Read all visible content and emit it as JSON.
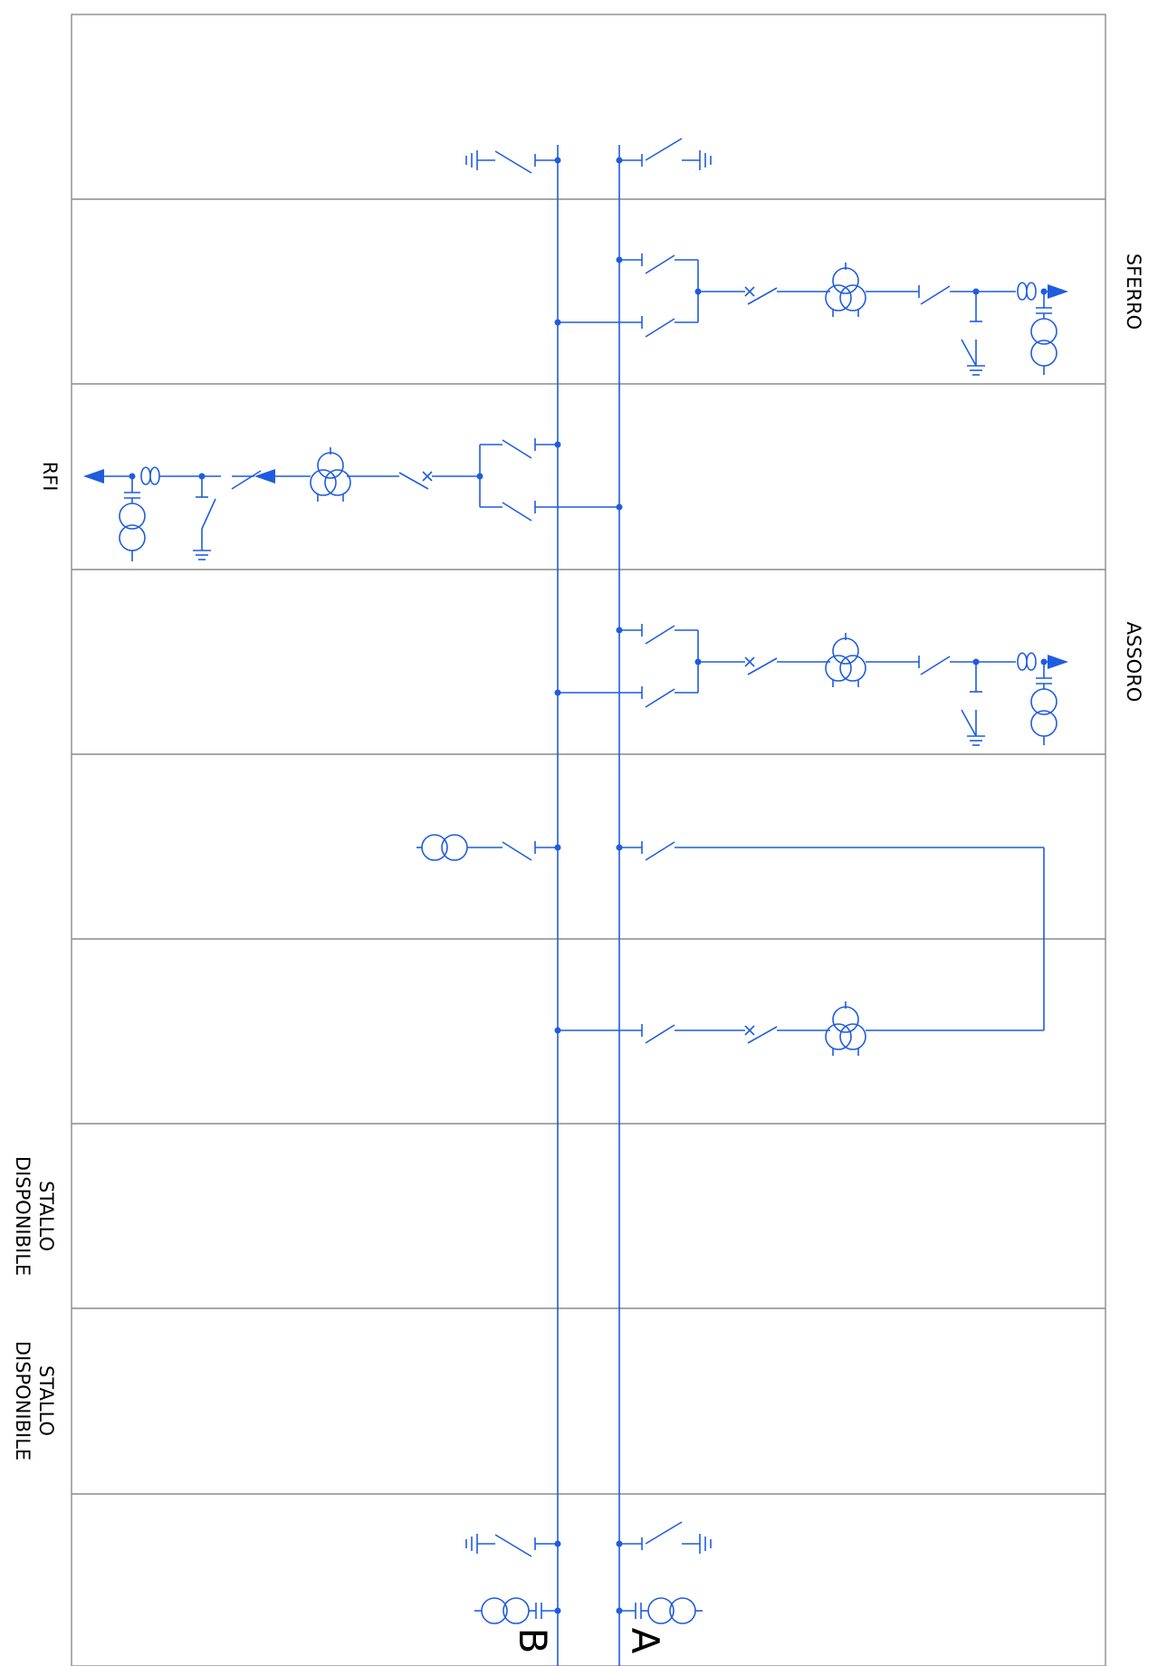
{
  "labels": {
    "bay_2": "SFERRO",
    "bay_3": "RFI",
    "bay_4": "ASSORO",
    "bay_8_line1": "STALLO",
    "bay_8_line2": "DISPONIBILE",
    "bay_9_line1": "STALLO",
    "bay_9_line2": "DISPONIBILE",
    "bus_a": "A",
    "bus_b": "B"
  },
  "colors": {
    "line": "#1f5ce0",
    "frame": "#8a8a8a",
    "text": "#000000"
  }
}
